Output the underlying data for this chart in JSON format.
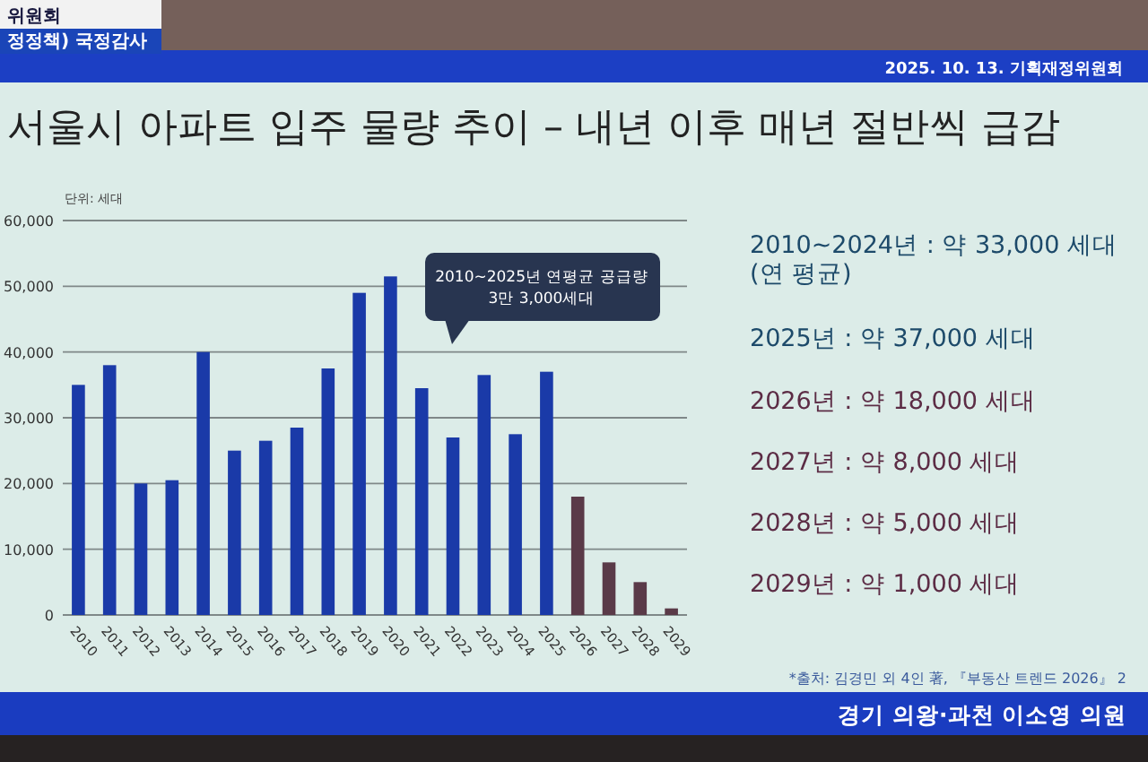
{
  "chart_data": {
    "type": "bar",
    "title": "서울시 아파트 입주 물량 추이 – 내년 이후 매년 절반씩 급감",
    "ylabel": "단위: 세대",
    "categories": [
      "2010",
      "2011",
      "2012",
      "2013",
      "2014",
      "2015",
      "2016",
      "2017",
      "2018",
      "2019",
      "2020",
      "2021",
      "2022",
      "2023",
      "2024",
      "2025",
      "2026",
      "2027",
      "2028",
      "2029"
    ],
    "values": [
      35000,
      38000,
      20000,
      20500,
      40000,
      25000,
      26500,
      28500,
      37500,
      49000,
      51500,
      34500,
      27000,
      36500,
      27500,
      37000,
      18000,
      8000,
      5000,
      1000
    ],
    "colors": [
      "#1a3aa8",
      "#1a3aa8",
      "#1a3aa8",
      "#1a3aa8",
      "#1a3aa8",
      "#1a3aa8",
      "#1a3aa8",
      "#1a3aa8",
      "#1a3aa8",
      "#1a3aa8",
      "#1a3aa8",
      "#1a3aa8",
      "#1a3aa8",
      "#1a3aa8",
      "#1a3aa8",
      "#1a3aa8",
      "#5a3a48",
      "#5a3a48",
      "#5a3a48",
      "#5a3a48"
    ],
    "ylim": [
      0,
      60000
    ],
    "yticks": [
      0,
      {
        "value": 10000,
        "label": "10,000"
      },
      {
        "value": 20000,
        "label": "20,000"
      },
      {
        "value": 30000,
        "label": "30,000"
      },
      {
        "value": 40000,
        "label": "40,000"
      },
      {
        "value": 50000,
        "label": "50,000"
      },
      {
        "value": 60000,
        "label": "60,000"
      }
    ],
    "grid": "y",
    "annotations": [
      "2010~2025년 연평균 공급량\n3만 3,000세대",
      "2010~2024년 : 약 33,000 세대\n(연 평균)",
      "2025년 : 약 37,000 세대",
      "2026년 : 약 18,000 세대",
      "2027년 : 약 8,000 세대",
      "2028년 : 약 5,000 세대",
      "2029년 : 약 1,000 세대",
      "*출처: 김경민 외 4인 著, 『부동산 트렌드 2026』 2",
      "2025. 10. 13. 기획재정위원회",
      "경기 의왕·과천 이소영 의원",
      "위원회",
      "정정책) 국정감사"
    ]
  }
}
